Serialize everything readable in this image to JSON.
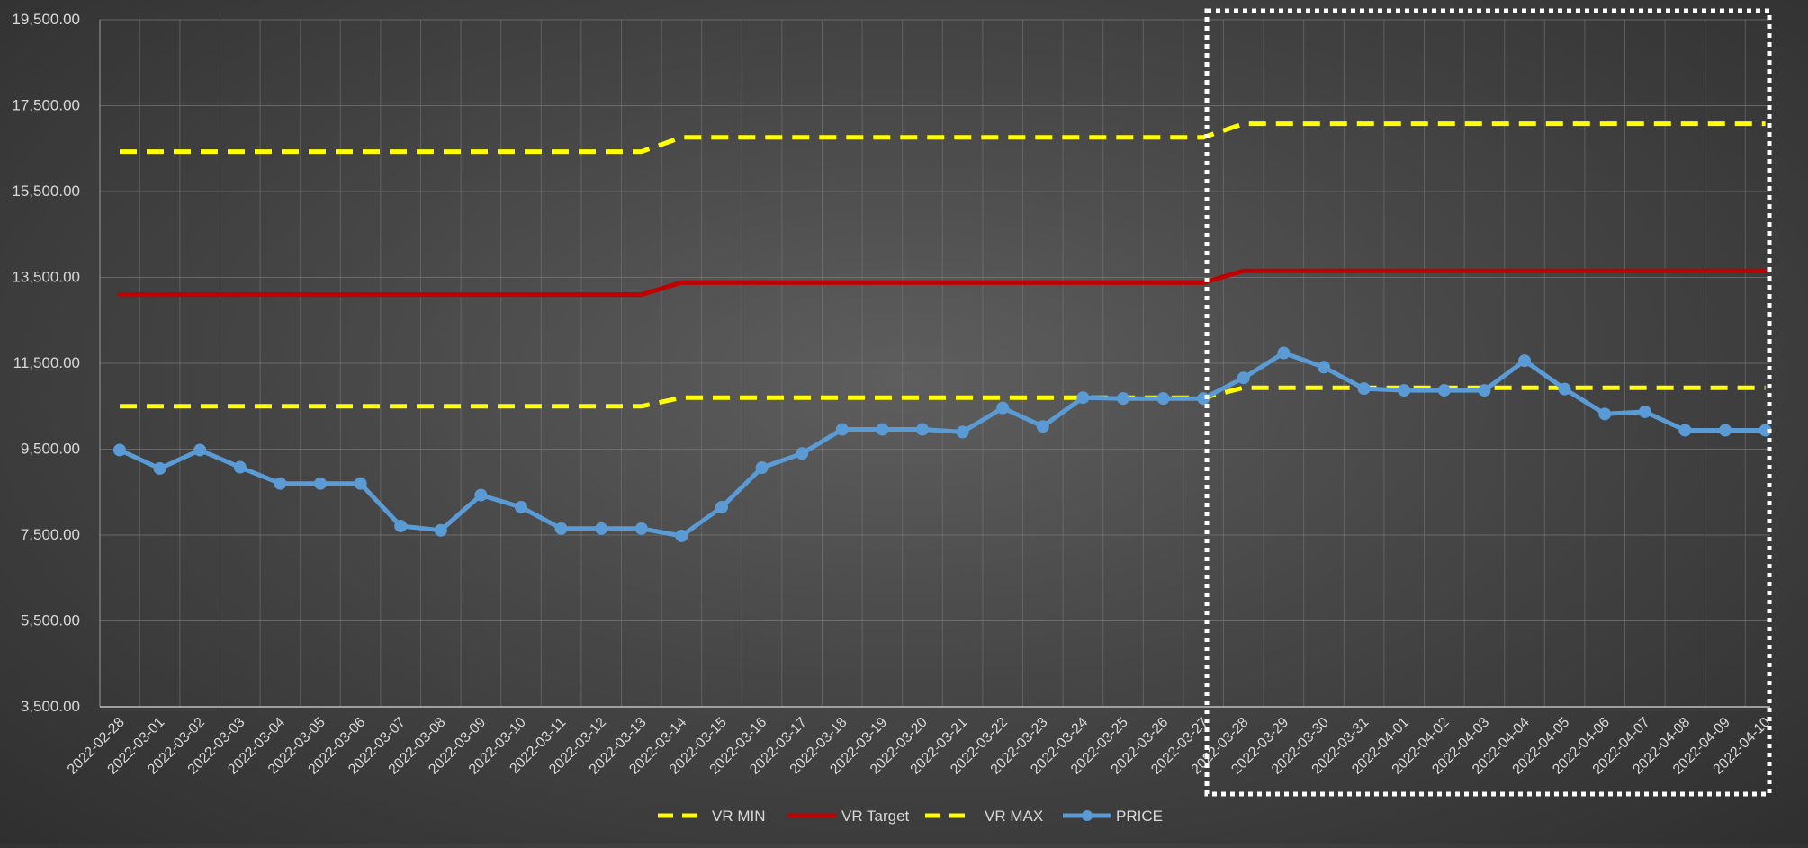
{
  "chart_data": {
    "type": "line",
    "title": "",
    "xlabel": "",
    "ylabel": "",
    "ylim": [
      3500,
      19500
    ],
    "yticks": [
      3500,
      5500,
      7500,
      9500,
      11500,
      13500,
      15500,
      17500,
      19500
    ],
    "ytick_labels": [
      "3,500.00",
      "5,500.00",
      "7,500.00",
      "9,500.00",
      "11,500.00",
      "13,500.00",
      "15,500.00",
      "17,500.00",
      "19,500.00"
    ],
    "grid": true,
    "legend_position": "bottom",
    "categories": [
      "2022-02-28",
      "2022-03-01",
      "2022-03-02",
      "2022-03-03",
      "2022-03-04",
      "2022-03-05",
      "2022-03-06",
      "2022-03-07",
      "2022-03-08",
      "2022-03-09",
      "2022-03-10",
      "2022-03-11",
      "2022-03-12",
      "2022-03-13",
      "2022-03-14",
      "2022-03-15",
      "2022-03-16",
      "2022-03-17",
      "2022-03-18",
      "2022-03-19",
      "2022-03-20",
      "2022-03-21",
      "2022-03-22",
      "2022-03-23",
      "2022-03-24",
      "2022-03-25",
      "2022-03-26",
      "2022-03-27",
      "2022-03-28",
      "2022-03-29",
      "2022-03-30",
      "2022-03-31",
      "2022-04-01",
      "2022-04-02",
      "2022-04-03",
      "2022-04-04",
      "2022-04-05",
      "2022-04-06",
      "2022-04-07",
      "2022-04-08",
      "2022-04-09",
      "2022-04-10"
    ],
    "x_labels": [
      "2022-02-28",
      "2022-03-01",
      "2022-03-02",
      "2022-03-03",
      "2022-03-04",
      "2022-03-05",
      "2022-03-06",
      "2022-03-07",
      "2022-03-08",
      "2022-03-09",
      "2022-03-10",
      "2022-03-11",
      "2022-03-12",
      "2022-03-13",
      "2022-03-14",
      "2022-03-15",
      "2022-03-16",
      "2022-03-17",
      "2022-03-18",
      "2022-03-19",
      "2022-03-20",
      "2022-03-21",
      "2022-03-22",
      "2022-03-23",
      "2022-03-24",
      "2022-03-25",
      "2022-03-26",
      "2022-03-27",
      "2022-03-28",
      "2022-03-29",
      "2022-03-30",
      "2022-03-31",
      "2022-04-01",
      "2022-04-02",
      "2022-04-03",
      "2022-04-04",
      "2022-04-05",
      "2022-04-06",
      "2022-04-07",
      "2022-04-08",
      "2022-04-09",
      "2022-04-10"
    ],
    "series": [
      {
        "name": "VR MIN",
        "style": "dashed",
        "color": "#ffff00",
        "marker": false,
        "values": [
          10500,
          10500,
          10500,
          10500,
          10500,
          10500,
          10500,
          10500,
          10500,
          10500,
          10500,
          10500,
          10500,
          10500,
          10700,
          10700,
          10700,
          10700,
          10700,
          10700,
          10700,
          10700,
          10700,
          10700,
          10700,
          10700,
          10700,
          10700,
          10930,
          10930,
          10930,
          10930,
          10930,
          10930,
          10930,
          10930,
          10930,
          10930,
          10930,
          10930,
          10930,
          10930
        ]
      },
      {
        "name": "VR Target",
        "style": "solid",
        "color": "#c00000",
        "marker": false,
        "values": [
          13100,
          13100,
          13100,
          13100,
          13100,
          13100,
          13100,
          13100,
          13100,
          13100,
          13100,
          13100,
          13100,
          13100,
          13380,
          13380,
          13380,
          13380,
          13380,
          13380,
          13380,
          13380,
          13380,
          13380,
          13380,
          13380,
          13380,
          13380,
          13650,
          13650,
          13650,
          13650,
          13650,
          13650,
          13650,
          13650,
          13650,
          13650,
          13650,
          13650,
          13650,
          13650
        ]
      },
      {
        "name": "VR MAX",
        "style": "dashed",
        "color": "#ffff00",
        "marker": false,
        "values": [
          16430,
          16430,
          16430,
          16430,
          16430,
          16430,
          16430,
          16430,
          16430,
          16430,
          16430,
          16430,
          16430,
          16430,
          16760,
          16760,
          16760,
          16760,
          16760,
          16760,
          16760,
          16760,
          16760,
          16760,
          16760,
          16760,
          16760,
          16760,
          17080,
          17080,
          17080,
          17080,
          17080,
          17080,
          17080,
          17080,
          17080,
          17080,
          17080,
          17080,
          17080,
          17080
        ]
      },
      {
        "name": "PRICE",
        "style": "solid",
        "color": "#5b9bd5",
        "marker": true,
        "values": [
          9480,
          9050,
          9480,
          9080,
          8700,
          8700,
          8700,
          7710,
          7610,
          8430,
          8150,
          7650,
          7650,
          7650,
          7480,
          8150,
          9070,
          9400,
          9960,
          9960,
          9960,
          9900,
          10460,
          10030,
          10700,
          10680,
          10680,
          10680,
          11160,
          11740,
          11410,
          10910,
          10870,
          10870,
          10870,
          11560,
          10900,
          10320,
          10370,
          9940,
          9940,
          9940
        ]
      }
    ],
    "annotations": [
      "dotted white rectangle highlighting 2022-03-28 to 2022-04-10"
    ]
  }
}
